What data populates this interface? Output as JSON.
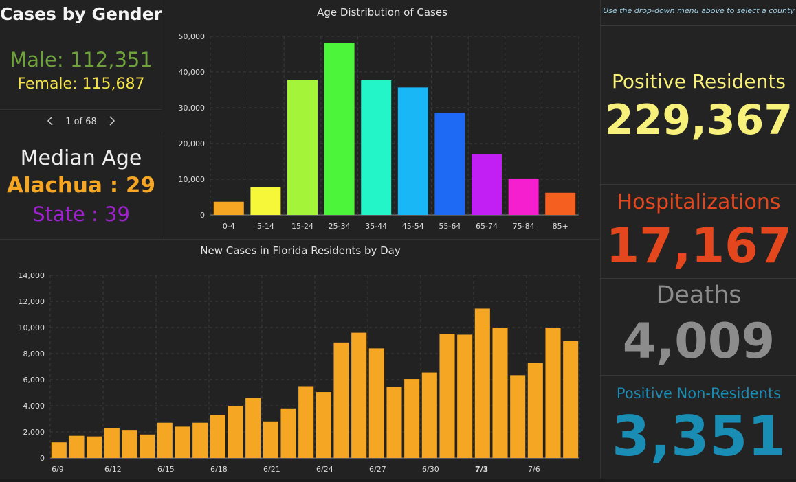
{
  "gender": {
    "title": "Cases by Gender",
    "male": "Male: 112,351",
    "female": "Female: 115,687"
  },
  "pager": {
    "text": "1 of 68",
    "prev_icon": "caret-left-icon",
    "next_icon": "caret-right-icon"
  },
  "median": {
    "title": "Median Age",
    "county": "Alachua : 29",
    "state": "State : 39"
  },
  "right_note": "Use the drop-down menu above to select a county",
  "stats": {
    "positive_residents": {
      "label": "Positive Residents",
      "value": "229,367",
      "color": "#f7f07a"
    },
    "hospitalizations": {
      "label": "Hospitalizations",
      "value": "17,167",
      "color": "#e4471e"
    },
    "deaths": {
      "label": "Deaths",
      "value": "4,009",
      "color": "#8c8c8c"
    },
    "positive_non_residents": {
      "label": "Positive Non-Residents",
      "value": "3,351",
      "color": "#1a8db5"
    }
  },
  "chart_data": [
    {
      "type": "bar",
      "title": "Age Distribution of Cases",
      "categories": [
        "0-4",
        "5-14",
        "15-24",
        "25-34",
        "35-44",
        "45-54",
        "55-64",
        "65-74",
        "75-84",
        "85+"
      ],
      "values": [
        3700,
        7800,
        37800,
        48200,
        37700,
        35700,
        28600,
        17100,
        10200,
        6200
      ],
      "colors": [
        "#f5a623",
        "#f7f73a",
        "#a4f53a",
        "#4cf53a",
        "#23f5c8",
        "#19b7f5",
        "#1f6af5",
        "#c21ff5",
        "#f51fcf",
        "#f55f1f"
      ],
      "yticks": [
        "0",
        "10,000",
        "20,000",
        "30,000",
        "40,000",
        "50,000"
      ],
      "ylim": [
        0,
        50000
      ],
      "grid": true
    },
    {
      "type": "bar",
      "title": "New Cases in Florida Residents by Day",
      "xticks": [
        "6/9",
        "",
        "",
        "6/12",
        "",
        "",
        "6/15",
        "",
        "",
        "6/18",
        "",
        "",
        "6/21",
        "",
        "",
        "6/24",
        "",
        "",
        "6/27",
        "",
        "",
        "6/30",
        "",
        "",
        "7/3",
        "",
        "",
        "7/6",
        "",
        ""
      ],
      "values": [
        1200,
        1700,
        1650,
        2300,
        2150,
        1800,
        2700,
        2400,
        2700,
        3300,
        4000,
        4600,
        2800,
        3800,
        5500,
        5050,
        8850,
        9600,
        8400,
        5450,
        6050,
        6550,
        9500,
        9450,
        11450,
        10000,
        6350,
        7300,
        10000,
        8950
      ],
      "color": "#f5a623",
      "yticks": [
        "0",
        "2,000",
        "4,000",
        "6,000",
        "8,000",
        "10,000",
        "12,000",
        "14,000"
      ],
      "ylim": [
        0,
        14000
      ],
      "grid": true
    }
  ]
}
